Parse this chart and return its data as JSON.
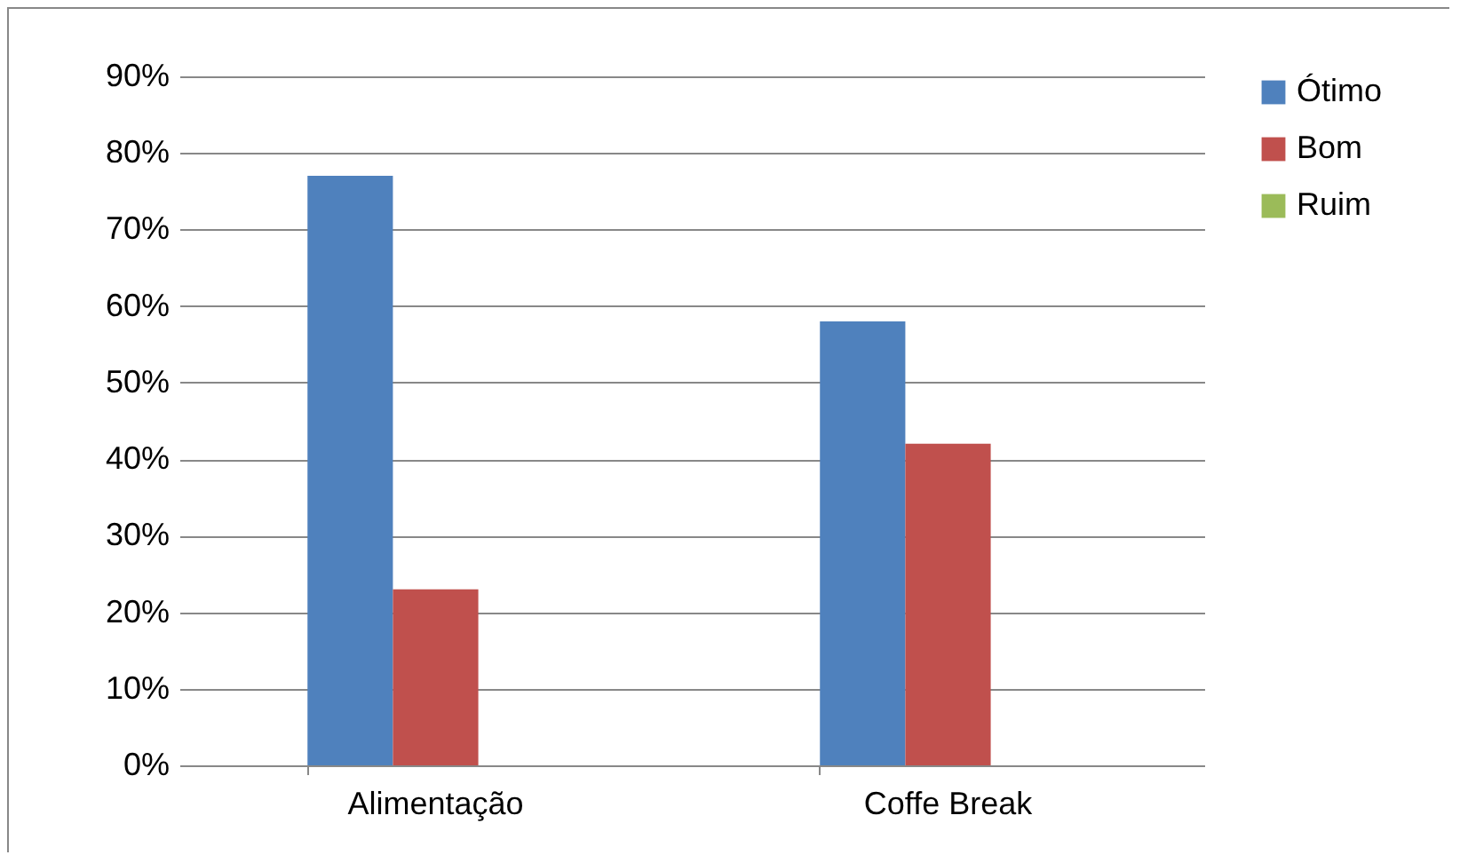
{
  "chart_data": {
    "type": "bar",
    "categories": [
      "Alimentação",
      "Coffe Break"
    ],
    "series": [
      {
        "name": "Ótimo",
        "color": "#4f81bd",
        "values": [
          77,
          58
        ]
      },
      {
        "name": "Bom",
        "color": "#c0504d",
        "values": [
          23,
          42
        ]
      },
      {
        "name": "Ruim",
        "color": "#9bbb59",
        "values": [
          0,
          0
        ]
      }
    ],
    "ylim": [
      0,
      90
    ],
    "yticks": [
      {
        "value": 0,
        "label": "0%"
      },
      {
        "value": 10,
        "label": "10%"
      },
      {
        "value": 20,
        "label": "20%"
      },
      {
        "value": 30,
        "label": "30%"
      },
      {
        "value": 40,
        "label": "40%"
      },
      {
        "value": 50,
        "label": "50%"
      },
      {
        "value": 60,
        "label": "60%"
      },
      {
        "value": 70,
        "label": "70%"
      },
      {
        "value": 80,
        "label": "80%"
      },
      {
        "value": 90,
        "label": "90%"
      }
    ],
    "grid": "y",
    "legend": "right"
  }
}
